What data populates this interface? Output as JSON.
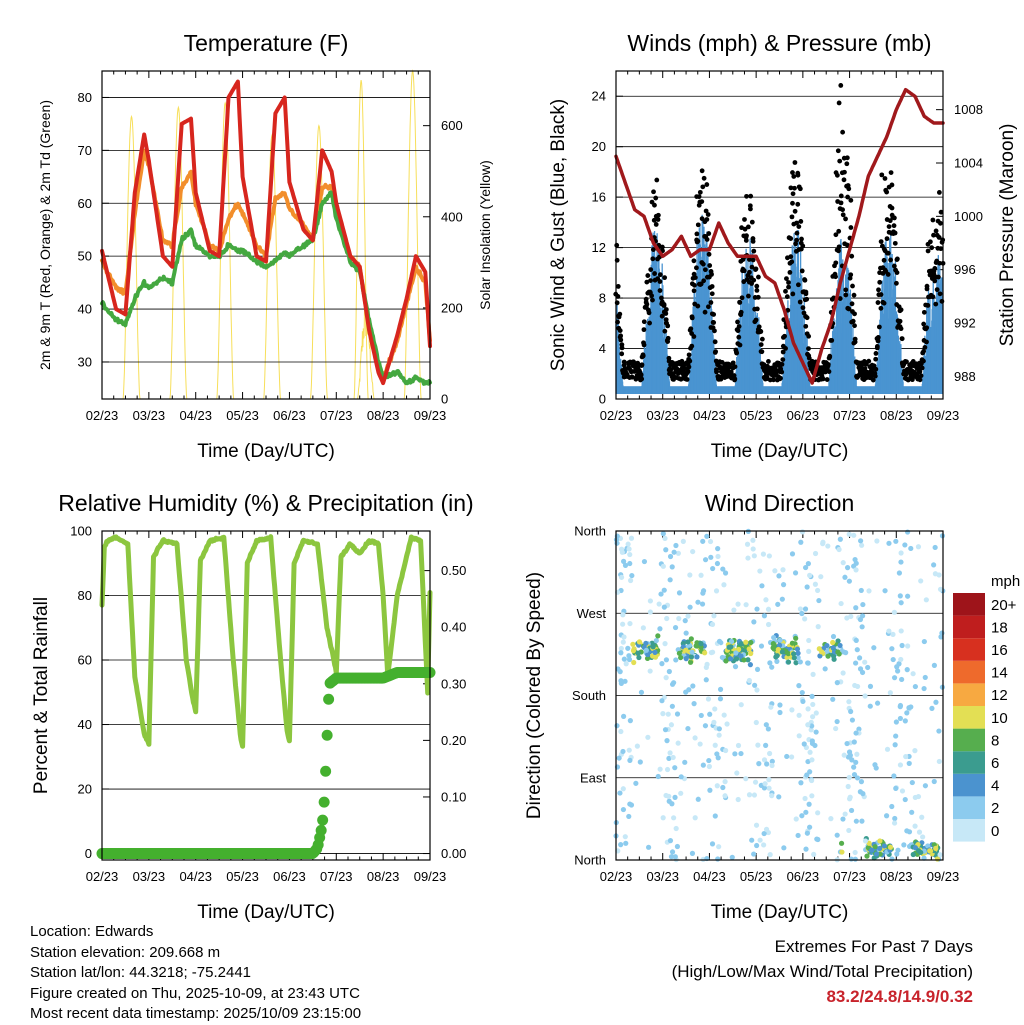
{
  "colors": {
    "temp2m": "#d7261e",
    "temp9m": "#f28e2b",
    "dewpoint": "#44a840",
    "solar": "#f7df5a",
    "wind": "#4a94d1",
    "gust": "#000000",
    "pressure": "#a0191c",
    "rh": "#8cc63f",
    "precip": "#44b02e",
    "extremes": "#c8232b"
  },
  "chart_data": [
    {
      "type": "line",
      "title": "Temperature (F)",
      "xlabel": "Time (Day/UTC)",
      "ylabel": "2m & 9m T (Red, Orange) & 2m Td (Green)",
      "y2label": "Solar Insolation (Yellow)",
      "ylim": [
        23,
        85
      ],
      "yticks": [
        30,
        40,
        50,
        60,
        70,
        80
      ],
      "y2lim": [
        0,
        720
      ],
      "y2ticks": [
        0,
        200,
        400,
        600
      ],
      "xticks": [
        "02/23",
        "03/23",
        "04/23",
        "05/23",
        "06/23",
        "07/23",
        "08/23",
        "09/23"
      ],
      "x": [
        0,
        0.3,
        0.5,
        0.7,
        0.9,
        1.0,
        1.3,
        1.5,
        1.7,
        1.9,
        2.0,
        2.3,
        2.5,
        2.7,
        2.9,
        3.0,
        3.3,
        3.5,
        3.7,
        3.9,
        4.0,
        4.3,
        4.5,
        4.7,
        4.9,
        5.0,
        5.3,
        5.5,
        5.7,
        5.9,
        6.0,
        6.3,
        6.5,
        6.7,
        6.9,
        7.0
      ],
      "series": [
        {
          "name": "2m T",
          "values": [
            51,
            40,
            39,
            62,
            73,
            68,
            50,
            48,
            75,
            76,
            62,
            51,
            50,
            80,
            83,
            65,
            50,
            49,
            77,
            80,
            64,
            55,
            53,
            70,
            66,
            60,
            50,
            48,
            36,
            28,
            26,
            35,
            42,
            50,
            47,
            33
          ]
        },
        {
          "name": "9m T",
          "values": [
            49,
            44,
            43,
            58,
            70,
            67,
            53,
            52,
            63,
            66,
            60,
            52,
            51,
            57,
            60,
            58,
            52,
            50,
            61,
            62,
            59,
            56,
            53,
            63,
            63,
            58,
            50,
            48,
            37,
            29,
            27,
            34,
            41,
            48,
            45,
            34
          ]
        },
        {
          "name": "2m Td",
          "values": [
            41,
            38,
            37,
            42,
            45,
            44,
            46,
            45,
            53,
            55,
            52,
            50,
            50,
            52,
            51,
            51,
            49,
            48,
            49,
            51,
            50,
            52,
            53,
            60,
            62,
            57,
            49,
            47,
            38,
            30,
            27,
            28,
            26,
            27,
            26,
            26
          ]
        }
      ],
      "solar": {
        "name": "Solar Insolation",
        "days": [
          0,
          1,
          2,
          3,
          4,
          5,
          6
        ],
        "peaks": [
          620,
          640,
          650,
          580,
          600,
          230,
          720
        ],
        "secondary_peak": 700
      }
    },
    {
      "type": "scatter",
      "title": "Winds (mph) & Pressure (mb)",
      "xlabel": "Time (Day/UTC)",
      "ylabel": "Sonic Wind & Gust (Blue, Black)",
      "y2label": "Station Pressure (Maroon)",
      "ylim": [
        0,
        26
      ],
      "yticks": [
        0,
        4,
        8,
        12,
        16,
        20,
        24
      ],
      "y2lim": [
        986.3,
        1010.9
      ],
      "y2ticks": [
        988,
        992,
        996,
        1000,
        1004,
        1008
      ],
      "xticks": [
        "02/23",
        "03/23",
        "04/23",
        "05/23",
        "06/23",
        "07/23",
        "08/23",
        "09/23"
      ],
      "wind_peaks": [
        11,
        13,
        14,
        12,
        13,
        12,
        13,
        11
      ],
      "gust_peaks": [
        16,
        16,
        17,
        16,
        20,
        24,
        19,
        16
      ],
      "pressure": {
        "x": [
          0,
          0.2,
          0.4,
          0.6,
          0.8,
          1.0,
          1.2,
          1.4,
          1.6,
          1.8,
          2.0,
          2.2,
          2.4,
          2.6,
          2.8,
          3.0,
          3.2,
          3.4,
          3.6,
          3.8,
          4.0,
          4.2,
          4.4,
          4.6,
          4.8,
          5.0,
          5.2,
          5.4,
          5.6,
          5.8,
          6.0,
          6.2,
          6.4,
          6.6,
          6.8,
          7.0
        ],
        "values": [
          1004.5,
          1002.5,
          1000.5,
          1000,
          998,
          997,
          997.5,
          998.5,
          997,
          997.5,
          997.5,
          999.5,
          998,
          997,
          997,
          997,
          995.5,
          995,
          993,
          990.5,
          989,
          987.5,
          990,
          992,
          995,
          997.5,
          1000,
          1003,
          1004.5,
          1006,
          1008,
          1009.5,
          1009,
          1007.5,
          1007,
          1007
        ]
      }
    },
    {
      "type": "line",
      "title": "Relative Humidity (%) & Precipitation (in)",
      "xlabel": "Time (Day/UTC)",
      "ylabel": "Percent & Total Rainfall",
      "ylim": [
        -2,
        100
      ],
      "yticks": [
        0,
        20,
        40,
        60,
        80,
        100
      ],
      "y2lim": [
        -0.0114,
        0.57
      ],
      "y2ticks": [
        "0.00",
        "0.10",
        "0.20",
        "0.30",
        "0.40",
        "0.50"
      ],
      "xticks": [
        "02/23",
        "03/23",
        "04/23",
        "05/23",
        "06/23",
        "07/23",
        "08/23",
        "09/23"
      ],
      "series": [
        {
          "name": "Relative Humidity",
          "x": [
            0,
            0.05,
            0.12,
            0.3,
            0.55,
            0.7,
            0.9,
            1.0,
            1.1,
            1.3,
            1.6,
            1.8,
            1.95,
            2.0,
            2.1,
            2.3,
            2.6,
            2.8,
            2.95,
            3.0,
            3.1,
            3.3,
            3.6,
            3.8,
            3.95,
            4.0,
            4.1,
            4.3,
            4.6,
            4.8,
            4.95,
            5.0,
            5.1,
            5.3,
            5.5,
            5.7,
            5.9,
            6.0,
            6.1,
            6.3,
            6.6,
            6.8,
            6.95,
            7.0
          ],
          "values": [
            77,
            95,
            97,
            98,
            96,
            55,
            37,
            34,
            92,
            97,
            96,
            60,
            47,
            44,
            91,
            97,
            98,
            60,
            37,
            33,
            90,
            97,
            98,
            62,
            38,
            35,
            90,
            97,
            96,
            70,
            60,
            56,
            92,
            96,
            93,
            97,
            96,
            80,
            55,
            80,
            98,
            97,
            50,
            81
          ]
        },
        {
          "name": "Total Precipitation",
          "x": [
            0,
            4.5,
            4.6,
            4.7,
            4.75,
            4.8,
            4.85,
            5.0,
            5.5,
            6.0,
            6.3,
            6.5,
            7.0
          ],
          "values": [
            0,
            0,
            0.01,
            0.05,
            0.1,
            0.2,
            0.3,
            0.31,
            0.31,
            0.31,
            0.32,
            0.32,
            0.32
          ]
        }
      ]
    },
    {
      "type": "scatter",
      "title": "Wind Direction",
      "xlabel": "Time (Day/UTC)",
      "ylabel": "Direction (Colored By Speed)",
      "yticks": [
        "North",
        "East",
        "South",
        "West",
        "North"
      ],
      "xticks": [
        "02/23",
        "03/23",
        "04/23",
        "05/23",
        "06/23",
        "07/23",
        "08/23",
        "09/23"
      ],
      "colorbar": {
        "title": "mph",
        "labels": [
          "0",
          "2",
          "4",
          "6",
          "8",
          "10",
          "12",
          "14",
          "16",
          "18",
          "20+"
        ],
        "colors": [
          "#c7e8f7",
          "#8ccbee",
          "#4b93cf",
          "#3b9c8f",
          "#56ae4e",
          "#e3df54",
          "#f7a941",
          "#ee6a2c",
          "#d7301f",
          "#bf1e1e",
          "#9e141a"
        ]
      }
    }
  ],
  "info": {
    "location": "Location: Edwards",
    "elevation": "Station elevation: 209.668 m",
    "latlon": "Station lat/lon: 44.3218; -75.2441",
    "created": "Figure created on Thu, 2025-10-09, at 23:43 UTC",
    "recent": "Most recent data timestamp: 2025/10/09 23:15:00"
  },
  "extremes": {
    "line1": "Extremes For Past 7 Days",
    "line2": "(High/Low/Max Wind/Total Precipitation)",
    "values": "83.2/24.8/14.9/0.32"
  }
}
